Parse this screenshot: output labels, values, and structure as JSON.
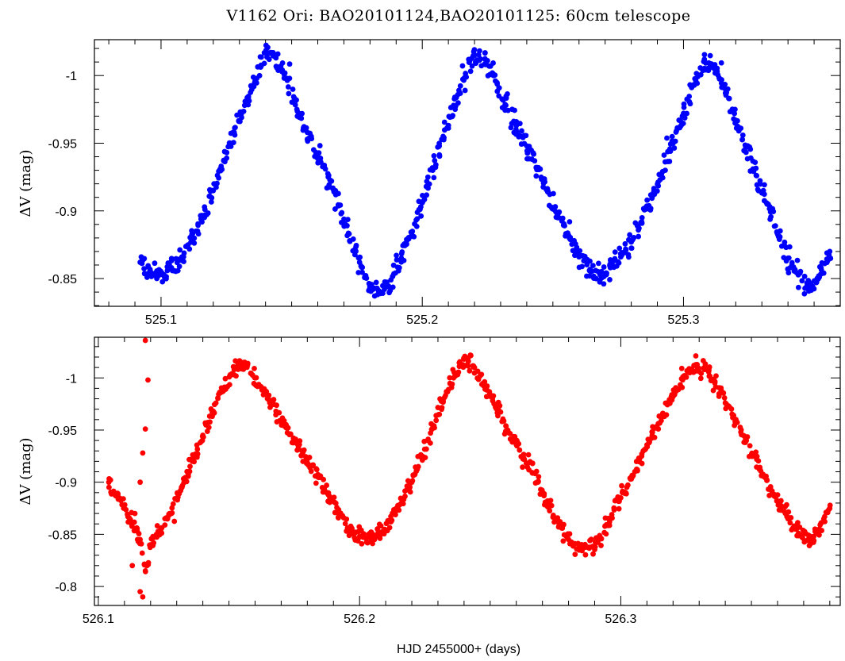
{
  "title": "V1162 Ori: BAO20101124,BAO20101125: 60cm telescope",
  "xlabel": "HJD 2455000+ (days)",
  "colors": {
    "top": "#0000ff",
    "bottom": "#ff0000"
  },
  "chart_data": [
    {
      "type": "scatter",
      "panel": "top",
      "ylabel": "ΔV (mag)",
      "xlim": [
        525.0745,
        525.36
      ],
      "ylim": [
        -0.8295,
        -1.0265
      ],
      "y_inverted": true,
      "xticks": [
        525.1,
        525.2,
        525.3
      ],
      "xtick_labels": [
        "525.1",
        "525.2",
        "525.3"
      ],
      "yticks": [
        -1.0,
        -0.95,
        -0.9,
        -0.85
      ],
      "ytick_labels": [
        "-1",
        "-0.95",
        "-0.9",
        "-0.85"
      ],
      "period_days": 0.0787,
      "series": [
        {
          "color": "#0000ff",
          "x": [
            525.092,
            525.096,
            525.1,
            525.104,
            525.108,
            525.112,
            525.116,
            525.12,
            525.124,
            525.128,
            525.132,
            525.136,
            525.14,
            525.144,
            525.148,
            525.152,
            525.156,
            525.16,
            525.164,
            525.168,
            525.172,
            525.176,
            525.18,
            525.184,
            525.188,
            525.192,
            525.196,
            525.2,
            525.204,
            525.208,
            525.212,
            525.216,
            525.22,
            525.224,
            525.228,
            525.232,
            525.236,
            525.24,
            525.244,
            525.248,
            525.252,
            525.256,
            525.26,
            525.264,
            525.268,
            525.272,
            525.276,
            525.28,
            525.284,
            525.288,
            525.292,
            525.296,
            525.3,
            525.304,
            525.308,
            525.312,
            525.316,
            525.32,
            525.324,
            525.328,
            525.332,
            525.336,
            525.34,
            525.344,
            525.348,
            525.352,
            525.356
          ],
          "y": [
            -0.862,
            -0.855,
            -0.853,
            -0.858,
            -0.866,
            -0.879,
            -0.895,
            -0.915,
            -0.937,
            -0.958,
            -0.978,
            -0.996,
            -1.017,
            -1.013,
            -0.998,
            -0.975,
            -0.958,
            -0.942,
            -0.925,
            -0.904,
            -0.883,
            -0.862,
            -0.843,
            -0.839,
            -0.849,
            -0.865,
            -0.884,
            -0.906,
            -0.93,
            -0.955,
            -0.978,
            -0.998,
            -1.015,
            -1.012,
            -0.996,
            -0.978,
            -0.963,
            -0.948,
            -0.932,
            -0.915,
            -0.898,
            -0.882,
            -0.866,
            -0.856,
            -0.853,
            -0.858,
            -0.866,
            -0.877,
            -0.892,
            -0.91,
            -0.929,
            -0.95,
            -0.972,
            -0.993,
            -1.012,
            -1.008,
            -0.99,
            -0.967,
            -0.947,
            -0.926,
            -0.905,
            -0.883,
            -0.865,
            -0.853,
            -0.846,
            -0.851,
            -0.87
          ]
        }
      ]
    },
    {
      "type": "scatter",
      "panel": "bottom",
      "ylabel": "ΔV (mag)",
      "xlim": [
        526.0985,
        526.384
      ],
      "ylim": [
        -0.7818,
        -1.039
      ],
      "y_inverted": true,
      "xticks": [
        526.1,
        526.2,
        526.3
      ],
      "xtick_labels": [
        "526.1",
        "526.2",
        "526.3"
      ],
      "yticks": [
        -1.0,
        -0.95,
        -0.9,
        -0.85,
        -0.8
      ],
      "ytick_labels": [
        "-1",
        "-0.95",
        "-0.9",
        "-0.85",
        "-0.8"
      ],
      "period_days": 0.0787,
      "series": [
        {
          "color": "#ff0000",
          "x": [
            526.104,
            526.108,
            526.112,
            526.116,
            526.118,
            526.12,
            526.124,
            526.128,
            526.132,
            526.136,
            526.14,
            526.144,
            526.148,
            526.152,
            526.156,
            526.16,
            526.164,
            526.168,
            526.172,
            526.176,
            526.18,
            526.184,
            526.188,
            526.192,
            526.196,
            526.2,
            526.204,
            526.208,
            526.212,
            526.216,
            526.22,
            526.224,
            526.228,
            526.232,
            526.236,
            526.24,
            526.244,
            526.248,
            526.252,
            526.256,
            526.26,
            526.264,
            526.268,
            526.272,
            526.276,
            526.28,
            526.284,
            526.288,
            526.292,
            526.296,
            526.3,
            526.304,
            526.308,
            526.312,
            526.316,
            526.32,
            526.324,
            526.328,
            526.332,
            526.336,
            526.34,
            526.344,
            526.348,
            526.352,
            526.356,
            526.36,
            526.364,
            526.368,
            526.372,
            526.376,
            526.38
          ],
          "y": [
            -0.9,
            -0.885,
            -0.863,
            -0.845,
            -0.815,
            -0.84,
            -0.855,
            -0.87,
            -0.895,
            -0.92,
            -0.945,
            -0.968,
            -0.99,
            -1.008,
            -1.015,
            -1.0,
            -0.985,
            -0.968,
            -0.952,
            -0.937,
            -0.922,
            -0.905,
            -0.888,
            -0.87,
            -0.856,
            -0.848,
            -0.847,
            -0.852,
            -0.862,
            -0.88,
            -0.9,
            -0.925,
            -0.952,
            -0.978,
            -1.0,
            -1.018,
            -1.01,
            -0.992,
            -0.972,
            -0.954,
            -0.936,
            -0.918,
            -0.9,
            -0.882,
            -0.862,
            -0.845,
            -0.835,
            -0.837,
            -0.848,
            -0.865,
            -0.885,
            -0.905,
            -0.925,
            -0.945,
            -0.963,
            -0.982,
            -1.0,
            -1.012,
            -1.01,
            -0.995,
            -0.976,
            -0.958,
            -0.94,
            -0.922,
            -0.902,
            -0.882,
            -0.865,
            -0.851,
            -0.846,
            -0.855,
            -0.875
          ]
        }
      ]
    }
  ]
}
